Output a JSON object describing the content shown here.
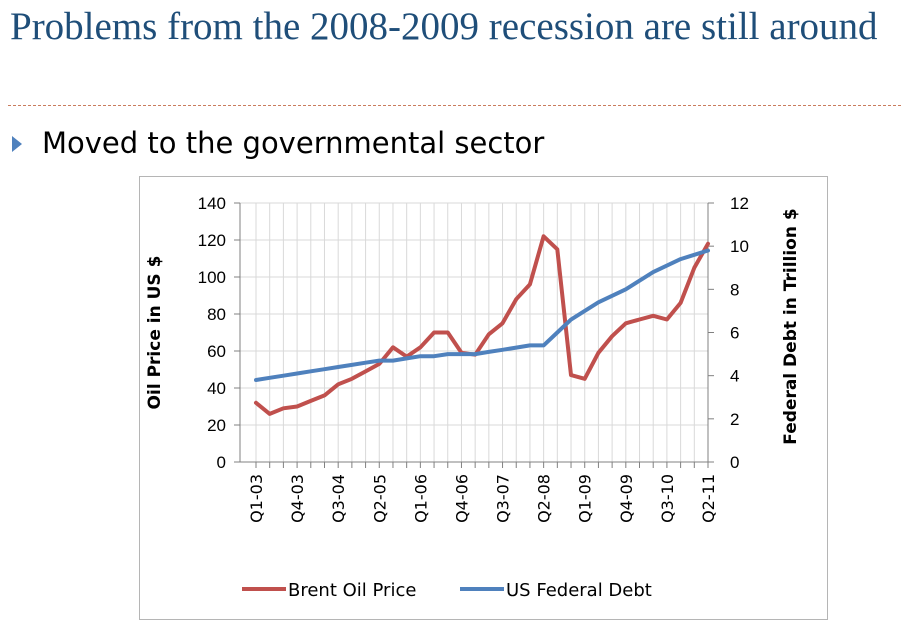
{
  "slide": {
    "title": "Problems from the 2008-2009 recession are still around",
    "bullet": "Moved to the governmental sector"
  },
  "colors": {
    "oil": "#c0504d",
    "debt": "#4f81bd",
    "title": "#1f4e79"
  },
  "chart_data": {
    "type": "line",
    "x": [
      "Q1-03",
      "Q2-03",
      "Q3-03",
      "Q4-03",
      "Q1-04",
      "Q2-04",
      "Q3-04",
      "Q4-04",
      "Q1-05",
      "Q2-05",
      "Q3-05",
      "Q4-05",
      "Q1-06",
      "Q2-06",
      "Q3-06",
      "Q4-06",
      "Q1-07",
      "Q2-07",
      "Q3-07",
      "Q4-07",
      "Q1-08",
      "Q2-08",
      "Q3-08",
      "Q4-08",
      "Q1-09",
      "Q2-09",
      "Q3-09",
      "Q4-09",
      "Q1-10",
      "Q2-10",
      "Q3-10",
      "Q4-10",
      "Q1-11",
      "Q2-11"
    ],
    "tick_labels": [
      "Q1-03",
      "Q4-03",
      "Q3-04",
      "Q2-05",
      "Q1-06",
      "Q4-06",
      "Q3-07",
      "Q2-08",
      "Q1-09",
      "Q4-09",
      "Q3-10",
      "Q2-11"
    ],
    "series": [
      {
        "name": "Brent Oil Price",
        "axis": "left",
        "values": [
          32,
          26,
          29,
          30,
          33,
          36,
          42,
          45,
          49,
          53,
          62,
          57,
          62,
          70,
          70,
          59,
          58,
          69,
          75,
          88,
          96,
          122,
          115,
          47,
          45,
          59,
          68,
          75,
          77,
          79,
          77,
          86,
          105,
          118
        ]
      },
      {
        "name": "US Federal Debt",
        "axis": "right",
        "values": [
          3.8,
          3.9,
          4.0,
          4.1,
          4.2,
          4.3,
          4.4,
          4.5,
          4.6,
          4.7,
          4.7,
          4.8,
          4.9,
          4.9,
          5.0,
          5.0,
          5.0,
          5.1,
          5.2,
          5.3,
          5.4,
          5.4,
          6.0,
          6.6,
          7.0,
          7.4,
          7.7,
          8.0,
          8.4,
          8.8,
          9.1,
          9.4,
          9.6,
          9.8
        ]
      }
    ],
    "ylabel_left": "Oil Price in US $",
    "ylabel_right": "Federal Debt in Trillion $",
    "ylim_left": [
      0,
      140
    ],
    "yticks_left": [
      0,
      20,
      40,
      60,
      80,
      100,
      120,
      140
    ],
    "ylim_right": [
      0,
      12
    ],
    "yticks_right": [
      0,
      2,
      4,
      6,
      8,
      10,
      12
    ],
    "grid": true,
    "legend": [
      "Brent Oil Price",
      "US Federal Debt"
    ],
    "legend_position": "bottom"
  }
}
